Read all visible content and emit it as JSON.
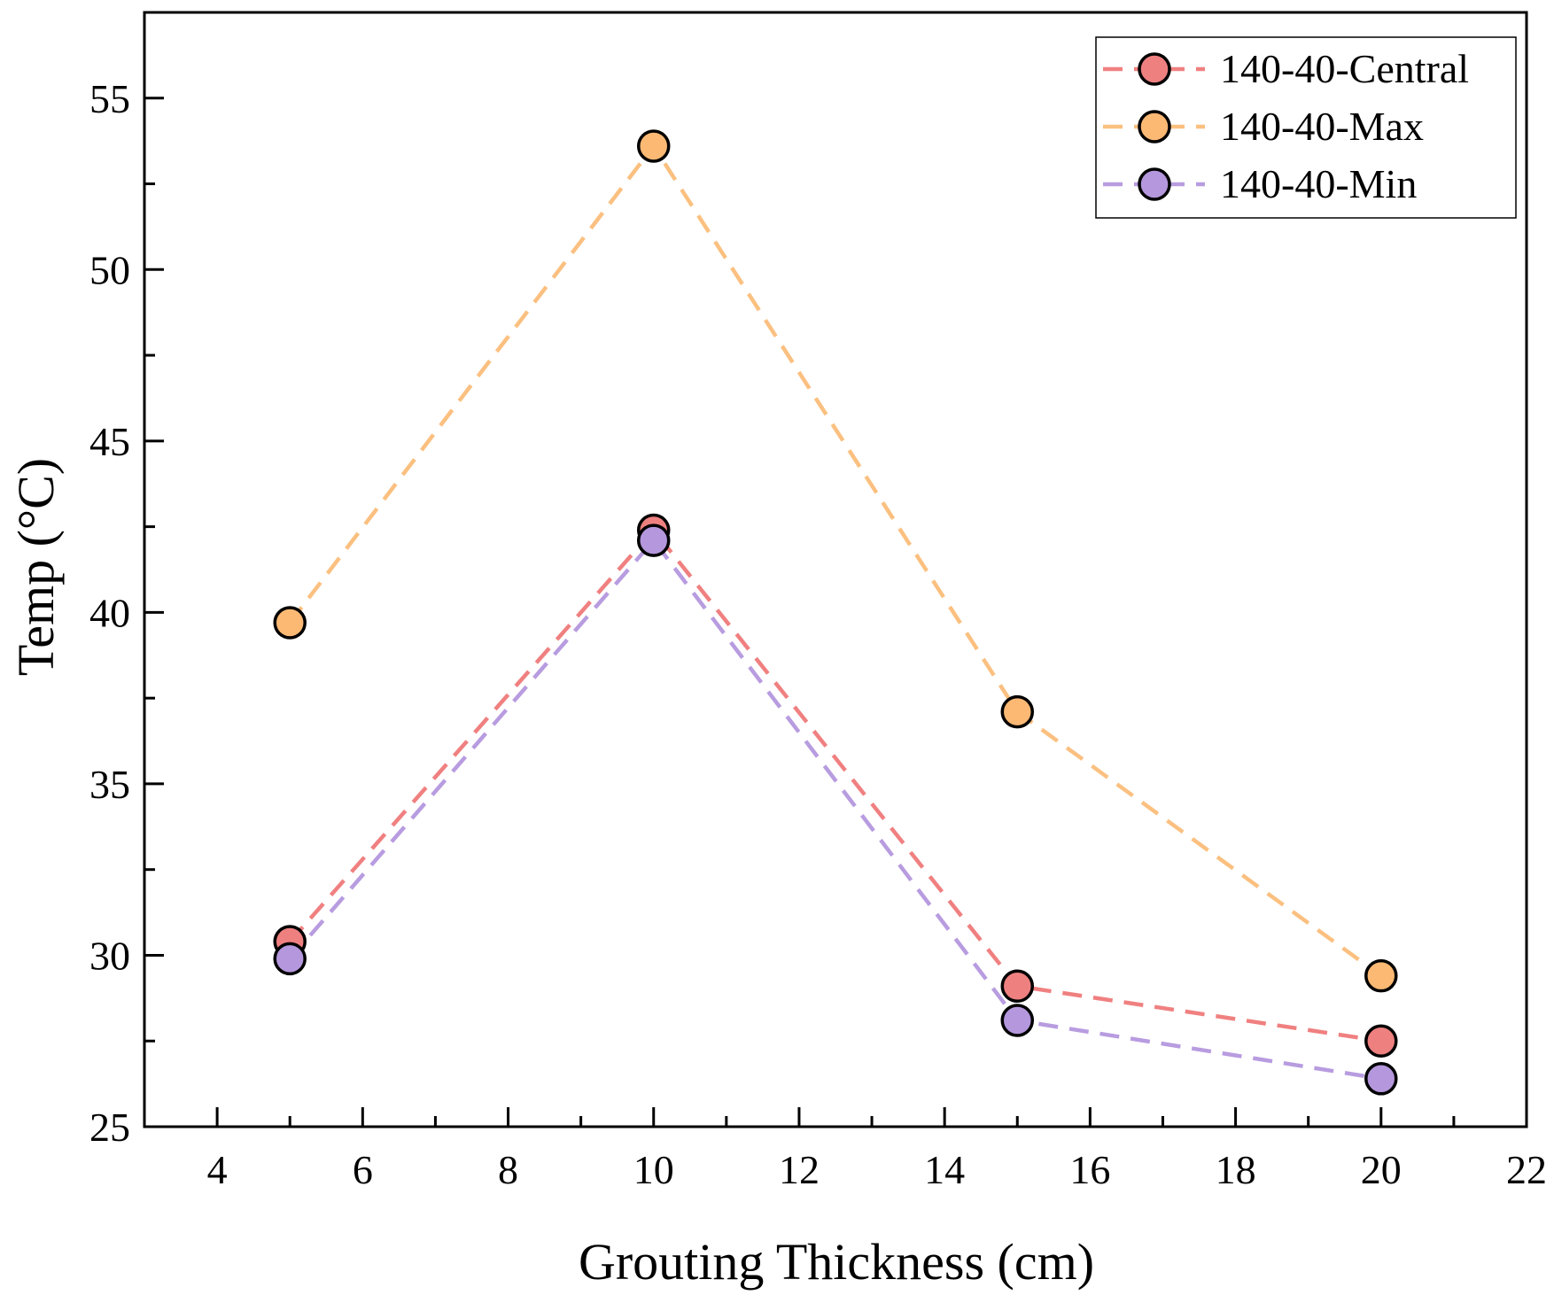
{
  "chart_data": {
    "type": "line",
    "title": "",
    "xlabel": "Grouting Thickness (cm)",
    "ylabel": "Temp (°C)",
    "xlim": [
      3,
      22
    ],
    "ylim": [
      25,
      57.5
    ],
    "xticks": [
      4,
      6,
      8,
      10,
      12,
      14,
      16,
      18,
      20,
      22
    ],
    "yticks": [
      25,
      30,
      35,
      40,
      45,
      50,
      55
    ],
    "x": [
      5,
      10,
      15,
      20
    ],
    "grid": false,
    "legend_position": "top-right",
    "series": [
      {
        "name": "140-40-Central",
        "values": [
          30.4,
          42.4,
          29.1,
          27.5
        ],
        "color": "#f08080",
        "marker_color": "#ee8080"
      },
      {
        "name": "140-40-Max",
        "values": [
          39.7,
          53.6,
          37.1,
          29.4
        ],
        "color": "#fbc080",
        "marker_color": "#fbb974"
      },
      {
        "name": "140-40-Min",
        "values": [
          29.9,
          42.1,
          28.1,
          26.4
        ],
        "color": "#b89ce0",
        "marker_color": "#b497dc"
      }
    ]
  }
}
